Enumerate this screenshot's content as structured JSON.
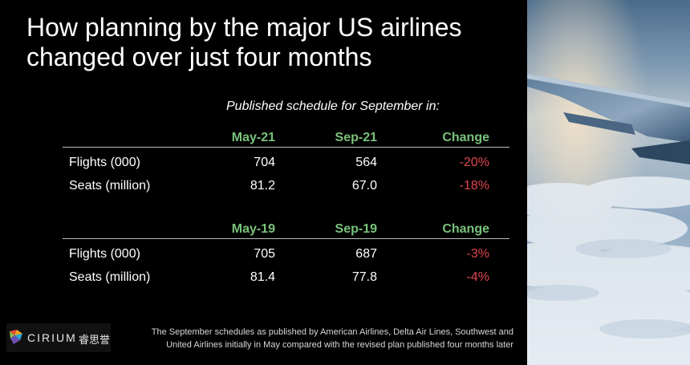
{
  "title": "How planning by the major US airlines changed over just four months",
  "subtitle": "Published schedule for September in:",
  "chart_data": {
    "type": "table",
    "tables": [
      {
        "columns": [
          "May-21",
          "Sep-21",
          "Change"
        ],
        "rows": [
          {
            "label": "Flights (000)",
            "values": [
              "704",
              "564",
              "-20%"
            ]
          },
          {
            "label": "Seats (million)",
            "values": [
              "81.2",
              "67.0",
              "-18%"
            ]
          }
        ]
      },
      {
        "columns": [
          "May-19",
          "Sep-19",
          "Change"
        ],
        "rows": [
          {
            "label": "Flights (000)",
            "values": [
              "705",
              "687",
              "-3%"
            ]
          },
          {
            "label": "Seats (million)",
            "values": [
              "81.4",
              "77.8",
              "-4%"
            ]
          }
        ]
      }
    ]
  },
  "footnote": {
    "line1": "The September schedules as published by American Airlines, Delta Air Lines, Southwest and",
    "line2": "United Airlines initially in May compared with the revised plan published four months later"
  },
  "logo": {
    "text": "CIRIUM",
    "cn": "睿思誉"
  },
  "colors": {
    "header": "#79c27a",
    "change": "#e0454f",
    "background": "#000000"
  },
  "photo": {
    "icon": "airplane-wing-over-clouds"
  }
}
